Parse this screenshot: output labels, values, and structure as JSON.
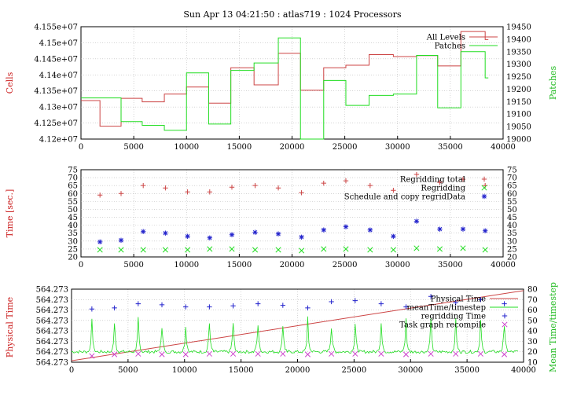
{
  "title": "Sun Apr 13 04:21:50 : atlas719 : 1024 Processors",
  "colors": {
    "red": "#cc4444",
    "green": "#22dd22",
    "blue": "#2222cc",
    "magenta": "#cc44cc",
    "axis_red": "#cc2222",
    "axis_green": "#22bb22"
  },
  "chart_data": [
    {
      "type": "line",
      "ylabel": "Cells",
      "y2label": "Patches",
      "xlim": [
        0,
        40000
      ],
      "ylim": [
        41200000,
        41550000
      ],
      "y2lim": [
        19000,
        19450
      ],
      "xticks": [
        0,
        5000,
        10000,
        15000,
        20000,
        25000,
        30000,
        35000,
        40000
      ],
      "xtick_labels": [
        "0",
        "5000",
        "10000",
        "15000",
        "20000",
        "25000",
        "30000",
        "35000",
        "40000"
      ],
      "yticks": [
        41200000,
        41250000,
        41300000,
        41350000,
        41400000,
        41450000,
        41500000,
        41550000
      ],
      "ytick_labels": [
        "4.12e+07",
        "4.125e+07",
        "4.13e+07",
        "4.135e+07",
        "4.14e+07",
        "4.145e+07",
        "4.15e+07",
        "4.155e+07"
      ],
      "y2ticks": [
        19000,
        19050,
        19100,
        19150,
        19200,
        19250,
        19300,
        19350,
        19400,
        19450
      ],
      "y2tick_labels": [
        "19000",
        "19050",
        "19100",
        "19150",
        "19200",
        "19250",
        "19300",
        "19350",
        "19400",
        "19450"
      ],
      "grid": true,
      "legend_position": "top-right",
      "series": [
        {
          "name": "All Levels",
          "axis": "y",
          "style": "step",
          "color": "#cc4444",
          "x": [
            0,
            1800,
            3800,
            5800,
            7900,
            10000,
            12100,
            14200,
            16400,
            18700,
            20800,
            23000,
            25100,
            27300,
            29600,
            31800,
            33800,
            36000,
            38300
          ],
          "y": [
            41320000,
            41240000,
            41327000,
            41316000,
            41340000,
            41362000,
            41312000,
            41422000,
            41369000,
            41467000,
            41352000,
            41422000,
            41430000,
            41463000,
            41457000,
            41460000,
            41428000,
            41535000,
            41510000
          ]
        },
        {
          "name": "Patches",
          "axis": "y2",
          "style": "step",
          "color": "#22dd22",
          "x": [
            0,
            1800,
            3800,
            5800,
            7900,
            10000,
            12100,
            14200,
            16400,
            18700,
            20800,
            23000,
            25100,
            27300,
            29600,
            31800,
            33800,
            36000,
            38300
          ],
          "y": [
            19165,
            19165,
            19070,
            19055,
            19035,
            19265,
            19060,
            19275,
            19305,
            19405,
            19000,
            19235,
            19135,
            19175,
            19180,
            19335,
            19125,
            19350,
            19245
          ]
        }
      ]
    },
    {
      "type": "scatter",
      "ylabel": "Time [sec.]",
      "xlim": [
        0,
        40000
      ],
      "ylim": [
        20,
        75
      ],
      "xticks": [
        0,
        5000,
        10000,
        15000,
        20000,
        25000,
        30000,
        35000,
        40000
      ],
      "xtick_labels": [
        "0",
        "5000",
        "10000",
        "15000",
        "20000",
        "25000",
        "30000",
        "35000",
        "40000"
      ],
      "yticks": [
        20,
        25,
        30,
        35,
        40,
        45,
        50,
        55,
        60,
        65,
        70,
        75
      ],
      "ytick_labels": [
        "20",
        "25",
        "30",
        "35",
        "40",
        "45",
        "50",
        "55",
        "60",
        "65",
        "70",
        "75"
      ],
      "grid": true,
      "legend_position": "top-right",
      "series": [
        {
          "name": "Regridding total",
          "marker": "+",
          "color": "#cc4444",
          "x": [
            1800,
            3800,
            5900,
            8000,
            10100,
            12200,
            14300,
            16500,
            18700,
            20900,
            23000,
            25100,
            27400,
            29600,
            31800,
            34000,
            36200,
            38300
          ],
          "y": [
            59,
            60,
            65,
            63.5,
            61,
            61,
            64,
            65,
            63.5,
            60.5,
            66.5,
            68,
            65,
            62,
            72,
            67,
            69,
            65
          ]
        },
        {
          "name": "Regridding",
          "marker": "x",
          "color": "#22dd22",
          "x": [
            1800,
            3800,
            5900,
            8000,
            10100,
            12200,
            14300,
            16500,
            18700,
            20900,
            23000,
            25100,
            27400,
            29600,
            31800,
            34000,
            36200,
            38300
          ],
          "y": [
            24.5,
            24.5,
            24.5,
            24.5,
            24.5,
            25,
            25,
            24.5,
            24.5,
            24,
            25,
            25,
            24.5,
            24.5,
            25.5,
            25,
            25.5,
            24.5
          ]
        },
        {
          "name": "Schedule and copy regridData",
          "marker": "*",
          "color": "#2222cc",
          "x": [
            1800,
            3800,
            5900,
            8000,
            10100,
            12200,
            14300,
            16500,
            18700,
            20900,
            23000,
            25100,
            27400,
            29600,
            31800,
            34000,
            36200,
            38300
          ],
          "y": [
            29.5,
            30.5,
            36,
            35,
            33,
            32,
            34,
            35.5,
            34.5,
            32.5,
            37,
            39,
            37,
            33,
            42.5,
            37.5,
            37.5,
            36.5
          ]
        }
      ]
    },
    {
      "type": "line",
      "ylabel": "Physical Time",
      "y2label": "Mean Time/timestep",
      "xlim": [
        0,
        40000
      ],
      "y2lim": [
        10,
        80
      ],
      "xticks": [
        0,
        5000,
        10000,
        15000,
        20000,
        25000,
        30000,
        35000,
        40000
      ],
      "xtick_labels": [
        "0",
        "5000",
        "10000",
        "15000",
        "20000",
        "25000",
        "30000",
        "35000",
        "40000"
      ],
      "ytick_labels": [
        "564.273",
        "564.273",
        "564.273",
        "564.273",
        "564.273",
        "564.273",
        "564.273",
        "564.273"
      ],
      "y2ticks": [
        10,
        20,
        30,
        40,
        50,
        60,
        70,
        80
      ],
      "y2tick_labels": [
        "10",
        "20",
        "30",
        "40",
        "50",
        "60",
        "70",
        "80"
      ],
      "grid": true,
      "legend_position": "top-right",
      "series": [
        {
          "name": "Physical Time",
          "style": "line",
          "color": "#cc4444",
          "x": [
            0,
            40000
          ],
          "y_fraction": [
            0.02,
            0.98
          ]
        },
        {
          "name": "meanTime/timestep",
          "style": "line",
          "color": "#22dd22",
          "baseline": 20,
          "spike_height": 28,
          "spike_x": [
            1800,
            3800,
            5900,
            8000,
            10100,
            12200,
            14300,
            16500,
            18700,
            20900,
            23000,
            25100,
            27400,
            29600,
            31800,
            34000,
            36200,
            38300
          ]
        },
        {
          "name": "regridding Time",
          "marker": "+",
          "color": "#2222cc",
          "x": [
            1800,
            3800,
            5900,
            8000,
            10100,
            12200,
            14300,
            16500,
            18700,
            20900,
            23000,
            25100,
            27400,
            29600,
            31800,
            34000,
            36200,
            38300
          ],
          "y": [
            61,
            62,
            66,
            65,
            63,
            63,
            64,
            66,
            64.5,
            62,
            68,
            69,
            66,
            63,
            73,
            67,
            70,
            66
          ]
        },
        {
          "name": "Task graph recompile",
          "marker": "x",
          "color": "#cc44cc",
          "x": [
            1800,
            3800,
            5900,
            8000,
            10100,
            12200,
            14300,
            16500,
            18700,
            20900,
            23000,
            25100,
            27400,
            29600,
            31800,
            34000,
            36200,
            38300
          ],
          "y": [
            16,
            17.5,
            18,
            17.5,
            17.5,
            18,
            18,
            18,
            18,
            17.5,
            18,
            18,
            18,
            17.5,
            18,
            18,
            18,
            17.5
          ]
        }
      ]
    }
  ]
}
